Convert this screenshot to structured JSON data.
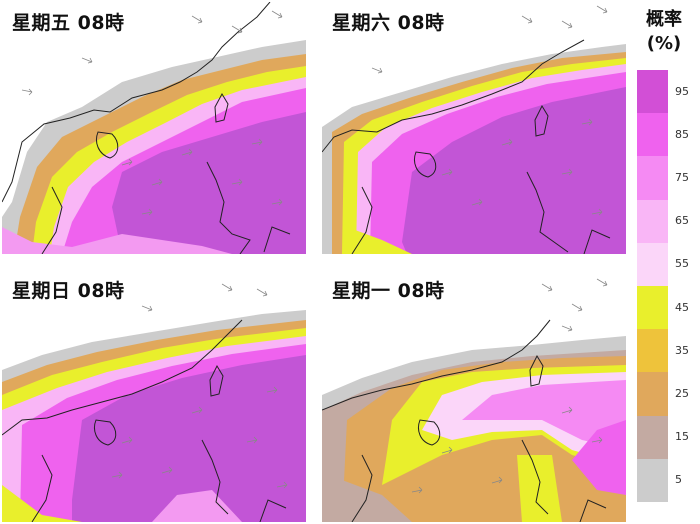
{
  "panels": [
    {
      "title": "星期五 08時"
    },
    {
      "title": "星期六 08時"
    },
    {
      "title": "星期日 08時"
    },
    {
      "title": "星期一 08時"
    }
  ],
  "legend": {
    "title_line1": "概率",
    "title_line2": "(%)",
    "labels": [
      "95",
      "85",
      "75",
      "65",
      "55",
      "45",
      "35",
      "25",
      "15",
      "5"
    ],
    "colors": [
      "#d24fd6",
      "#ef62ee",
      "#f58af3",
      "#f9b6f6",
      "#fbd6f9",
      "#e9ef2c",
      "#eec33b",
      "#e0a85c",
      "#c3aaa2",
      "#cccccc"
    ]
  },
  "map_colors": {
    "sea_high": "#c255d6",
    "sea_mid": "#e860ec",
    "sea_low": "#f39af1",
    "band_yellow": "#e9ef2c",
    "band_orange": "#eec33b",
    "band_brown": "#c3aaa2",
    "band_gray": "#cccccc",
    "land": "#ffffff",
    "arrows": "#888888"
  }
}
